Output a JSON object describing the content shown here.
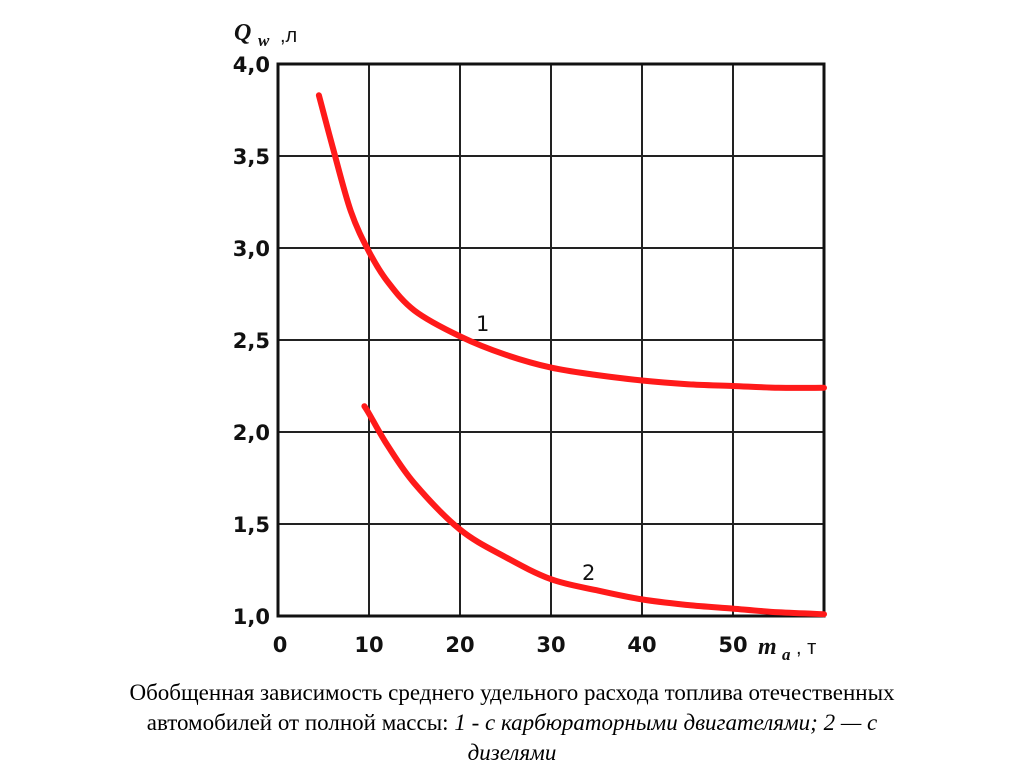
{
  "chart_data": {
    "type": "line",
    "y_axis": {
      "symbol": "Q",
      "subscript": "w",
      "unit": ",л",
      "ticks": [
        "4,0",
        "3,5",
        "3,0",
        "2,5",
        "2,0",
        "1,5",
        "1,0"
      ],
      "ylim": [
        1.0,
        4.0
      ]
    },
    "x_axis": {
      "symbol": "m",
      "subscript": "a",
      "unit": ", т",
      "ticks": [
        "0",
        "10",
        "20",
        "30",
        "40",
        "50"
      ],
      "xlim": [
        0,
        60
      ]
    },
    "grid": true,
    "series": [
      {
        "name": "1",
        "color": "#ff1a1a",
        "x": [
          4.5,
          6,
          8,
          10,
          12,
          15,
          20,
          25,
          30,
          35,
          40,
          45,
          50,
          55,
          60
        ],
        "y": [
          3.83,
          3.55,
          3.2,
          2.98,
          2.82,
          2.66,
          2.52,
          2.42,
          2.35,
          2.31,
          2.28,
          2.26,
          2.25,
          2.24,
          2.24
        ]
      },
      {
        "name": "2",
        "color": "#ff1a1a",
        "x": [
          9.5,
          10,
          12,
          15,
          20,
          25,
          30,
          35,
          40,
          45,
          50,
          55,
          60
        ],
        "y": [
          2.14,
          2.1,
          1.93,
          1.72,
          1.47,
          1.32,
          1.2,
          1.14,
          1.09,
          1.06,
          1.04,
          1.02,
          1.01
        ]
      }
    ],
    "annotations": [
      "1",
      "2"
    ]
  },
  "caption": {
    "line1": "Обобщенная зависимость среднего удельного расхода топлива отечественных",
    "line2_plain": "автомобилей от полной массы: ",
    "line2_italic": "1 - с карбюраторными двигателями;  2 — с",
    "line3_italic": "дизелями"
  }
}
